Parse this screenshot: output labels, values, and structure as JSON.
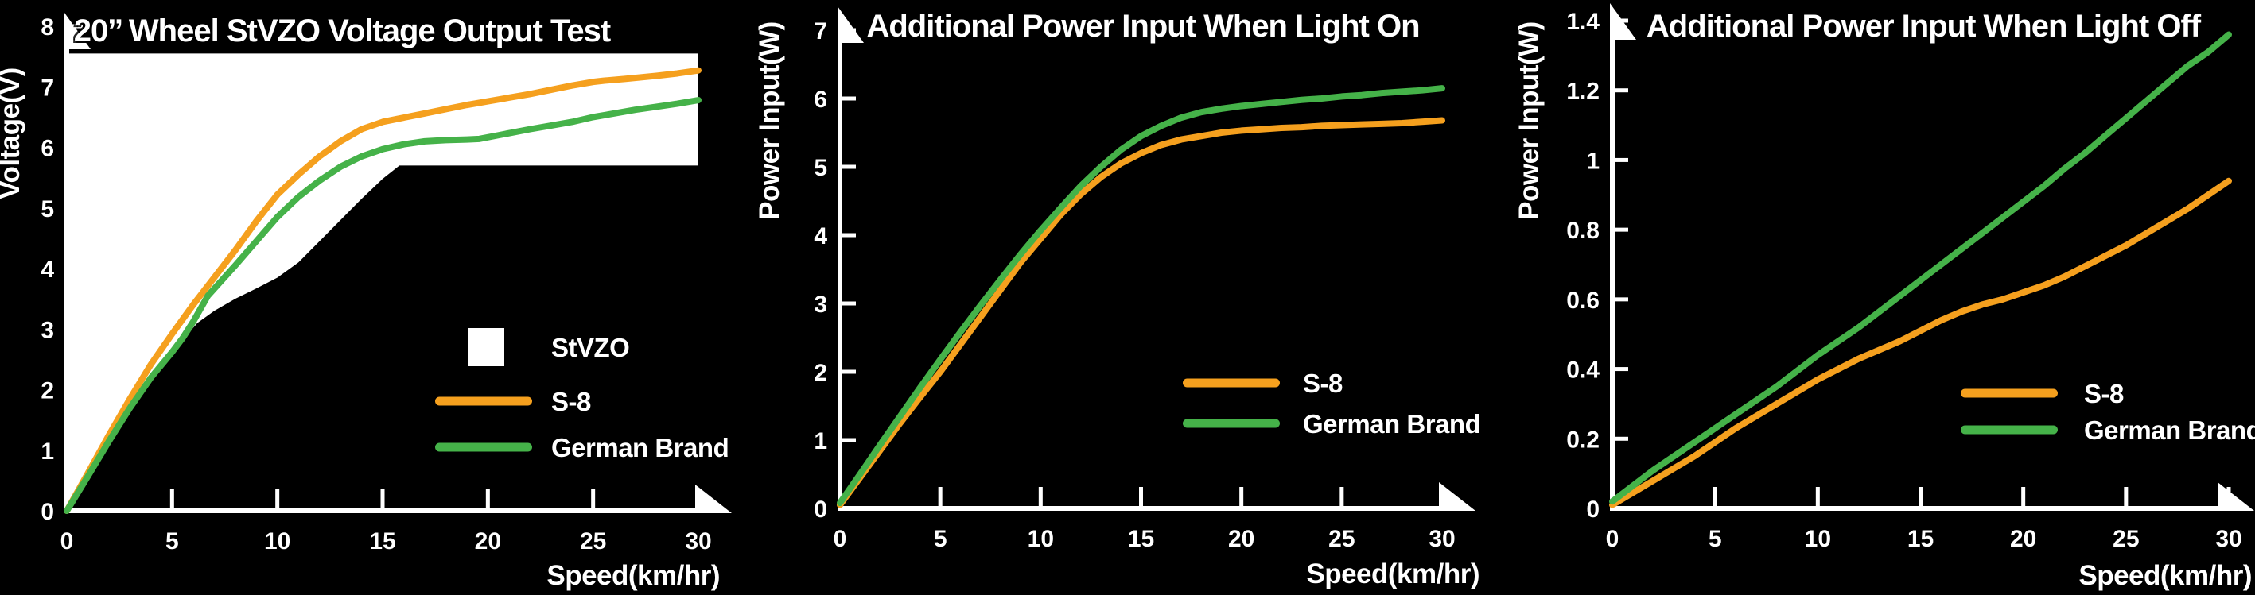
{
  "page": {
    "background_color": "#000000",
    "text_color": "#FFFFFF",
    "accent_orange": "#F5A01E",
    "accent_green": "#45B249"
  },
  "chart_data": [
    {
      "type": "line",
      "title": "20’’ Wheel StVZO Voltage Output Test",
      "xlabel": "Speed(km/hr)",
      "ylabel": "Voltage(V)",
      "xlim": [
        0,
        30
      ],
      "ylim": [
        0,
        8
      ],
      "xticks": [
        0,
        5,
        10,
        15,
        20,
        25,
        30
      ],
      "yticks": [
        0,
        1,
        2,
        3,
        4,
        5,
        6,
        7,
        8
      ],
      "grid": false,
      "legend_position": "lower right",
      "band": {
        "label": "StVZO",
        "color": "#FFFFFF",
        "upper": 7.55,
        "lower_boundary": [
          [
            0,
            0
          ],
          [
            1,
            0.57
          ],
          [
            2,
            1.15
          ],
          [
            3,
            1.7
          ],
          [
            4,
            2.2
          ],
          [
            5,
            2.62
          ],
          [
            5.5,
            2.82
          ],
          [
            6.2,
            3.1
          ],
          [
            7,
            3.3
          ],
          [
            8,
            3.5
          ],
          [
            9,
            3.67
          ],
          [
            10,
            3.85
          ],
          [
            11,
            4.1
          ],
          [
            12,
            4.45
          ],
          [
            13,
            4.8
          ],
          [
            14,
            5.15
          ],
          [
            15,
            5.48
          ],
          [
            15.8,
            5.7
          ],
          [
            30,
            5.7
          ]
        ]
      },
      "series": [
        {
          "name": "S-8",
          "color": "#F5A01E",
          "points": [
            [
              0,
              0
            ],
            [
              1,
              0.62
            ],
            [
              2,
              1.25
            ],
            [
              3,
              1.85
            ],
            [
              4,
              2.42
            ],
            [
              5,
              2.92
            ],
            [
              6,
              3.4
            ],
            [
              7,
              3.85
            ],
            [
              8,
              4.3
            ],
            [
              9,
              4.78
            ],
            [
              10,
              5.22
            ],
            [
              11,
              5.55
            ],
            [
              12,
              5.85
            ],
            [
              13,
              6.1
            ],
            [
              14,
              6.3
            ],
            [
              15,
              6.42
            ],
            [
              15.7,
              6.47
            ],
            [
              17,
              6.56
            ],
            [
              18,
              6.63
            ],
            [
              19,
              6.7
            ],
            [
              20,
              6.76
            ],
            [
              21,
              6.82
            ],
            [
              22,
              6.88
            ],
            [
              23,
              6.95
            ],
            [
              24,
              7.02
            ],
            [
              25,
              7.08
            ],
            [
              25.5,
              7.1
            ],
            [
              26.5,
              7.13
            ],
            [
              28,
              7.18
            ],
            [
              29,
              7.22
            ],
            [
              30,
              7.27
            ]
          ]
        },
        {
          "name": "German Brand",
          "color": "#45B249",
          "points": [
            [
              0,
              0
            ],
            [
              1,
              0.57
            ],
            [
              2,
              1.15
            ],
            [
              3,
              1.7
            ],
            [
              4,
              2.2
            ],
            [
              5,
              2.62
            ],
            [
              5.5,
              2.85
            ],
            [
              6,
              3.12
            ],
            [
              6.7,
              3.55
            ],
            [
              8,
              4.05
            ],
            [
              9,
              4.45
            ],
            [
              10,
              4.85
            ],
            [
              11,
              5.18
            ],
            [
              12,
              5.45
            ],
            [
              13,
              5.68
            ],
            [
              14,
              5.85
            ],
            [
              15,
              5.97
            ],
            [
              16,
              6.05
            ],
            [
              17,
              6.1
            ],
            [
              18,
              6.12
            ],
            [
              19,
              6.13
            ],
            [
              19.6,
              6.14
            ],
            [
              20.5,
              6.2
            ],
            [
              22,
              6.3
            ],
            [
              23,
              6.36
            ],
            [
              24,
              6.42
            ],
            [
              25,
              6.5
            ],
            [
              26,
              6.56
            ],
            [
              27,
              6.62
            ],
            [
              28,
              6.67
            ],
            [
              29,
              6.72
            ],
            [
              30,
              6.78
            ]
          ]
        }
      ]
    },
    {
      "type": "line",
      "title": "Additional Power Input When Light On",
      "xlabel": "Speed(km/hr)",
      "ylabel": "Power Input(W)",
      "xlim": [
        0,
        30
      ],
      "ylim": [
        0,
        7
      ],
      "xticks": [
        0,
        5,
        10,
        15,
        20,
        25,
        30
      ],
      "yticks": [
        0,
        1,
        2,
        3,
        4,
        5,
        6,
        7
      ],
      "grid": false,
      "legend_position": "lower right",
      "series": [
        {
          "name": "S-8",
          "color": "#F5A01E",
          "points": [
            [
              0,
              0.05
            ],
            [
              1,
              0.45
            ],
            [
              2,
              0.85
            ],
            [
              3,
              1.25
            ],
            [
              4,
              1.63
            ],
            [
              5,
              2.0
            ],
            [
              6,
              2.4
            ],
            [
              7,
              2.8
            ],
            [
              8,
              3.2
            ],
            [
              9,
              3.6
            ],
            [
              10,
              3.95
            ],
            [
              11,
              4.3
            ],
            [
              12,
              4.6
            ],
            [
              13,
              4.85
            ],
            [
              14,
              5.05
            ],
            [
              15,
              5.2
            ],
            [
              16,
              5.32
            ],
            [
              17,
              5.4
            ],
            [
              18,
              5.45
            ],
            [
              19,
              5.5
            ],
            [
              20,
              5.53
            ],
            [
              21,
              5.55
            ],
            [
              22,
              5.57
            ],
            [
              23,
              5.58
            ],
            [
              24,
              5.6
            ],
            [
              25,
              5.61
            ],
            [
              26,
              5.62
            ],
            [
              27,
              5.63
            ],
            [
              28,
              5.64
            ],
            [
              29,
              5.66
            ],
            [
              30,
              5.68
            ]
          ]
        },
        {
          "name": "German Brand",
          "color": "#45B249",
          "points": [
            [
              0,
              0.08
            ],
            [
              1,
              0.5
            ],
            [
              2,
              0.93
            ],
            [
              3,
              1.35
            ],
            [
              4,
              1.77
            ],
            [
              5,
              2.18
            ],
            [
              6,
              2.58
            ],
            [
              7,
              2.97
            ],
            [
              8,
              3.35
            ],
            [
              9,
              3.72
            ],
            [
              10,
              4.07
            ],
            [
              11,
              4.4
            ],
            [
              12,
              4.72
            ],
            [
              13,
              5.0
            ],
            [
              14,
              5.25
            ],
            [
              15,
              5.45
            ],
            [
              16,
              5.6
            ],
            [
              17,
              5.72
            ],
            [
              18,
              5.8
            ],
            [
              19,
              5.85
            ],
            [
              20,
              5.89
            ],
            [
              21,
              5.92
            ],
            [
              22,
              5.95
            ],
            [
              23,
              5.98
            ],
            [
              24,
              6.0
            ],
            [
              25,
              6.03
            ],
            [
              26,
              6.05
            ],
            [
              27,
              6.08
            ],
            [
              28,
              6.1
            ],
            [
              29,
              6.12
            ],
            [
              30,
              6.15
            ]
          ]
        }
      ]
    },
    {
      "type": "line",
      "title": "Additional Power Input When Light Off",
      "xlabel": "Speed(km/hr)",
      "ylabel": "Power Input(W)",
      "xlim": [
        0,
        30
      ],
      "ylim": [
        0,
        1.4
      ],
      "xticks": [
        0,
        5,
        10,
        15,
        20,
        25,
        30
      ],
      "yticks": [
        0,
        0.2,
        0.4,
        0.6,
        0.8,
        1,
        1.2,
        1.4
      ],
      "grid": false,
      "legend_position": "lower right",
      "series": [
        {
          "name": "S-8",
          "color": "#F5A01E",
          "points": [
            [
              0,
              0.01
            ],
            [
              2,
              0.08
            ],
            [
              4,
              0.15
            ],
            [
              5,
              0.19
            ],
            [
              6,
              0.23
            ],
            [
              8,
              0.3
            ],
            [
              10,
              0.37
            ],
            [
              12,
              0.43
            ],
            [
              14,
              0.48
            ],
            [
              15,
              0.51
            ],
            [
              16,
              0.54
            ],
            [
              17,
              0.565
            ],
            [
              18,
              0.585
            ],
            [
              19,
              0.6
            ],
            [
              20,
              0.62
            ],
            [
              21,
              0.64
            ],
            [
              22,
              0.665
            ],
            [
              23,
              0.695
            ],
            [
              24,
              0.725
            ],
            [
              25,
              0.755
            ],
            [
              26,
              0.79
            ],
            [
              27,
              0.825
            ],
            [
              28,
              0.86
            ],
            [
              29,
              0.9
            ],
            [
              30,
              0.94
            ]
          ]
        },
        {
          "name": "German Brand",
          "color": "#45B249",
          "points": [
            [
              0,
              0.02
            ],
            [
              2,
              0.11
            ],
            [
              4,
              0.19
            ],
            [
              5,
              0.23
            ],
            [
              6,
              0.27
            ],
            [
              8,
              0.35
            ],
            [
              10,
              0.44
            ],
            [
              12,
              0.52
            ],
            [
              14,
              0.61
            ],
            [
              15,
              0.655
            ],
            [
              16,
              0.7
            ],
            [
              17,
              0.745
            ],
            [
              18,
              0.79
            ],
            [
              19,
              0.835
            ],
            [
              20,
              0.88
            ],
            [
              21,
              0.925
            ],
            [
              22,
              0.975
            ],
            [
              23,
              1.02
            ],
            [
              24,
              1.07
            ],
            [
              25,
              1.12
            ],
            [
              26,
              1.17
            ],
            [
              27,
              1.22
            ],
            [
              28,
              1.27
            ],
            [
              29,
              1.31
            ],
            [
              30,
              1.36
            ]
          ]
        }
      ]
    }
  ]
}
